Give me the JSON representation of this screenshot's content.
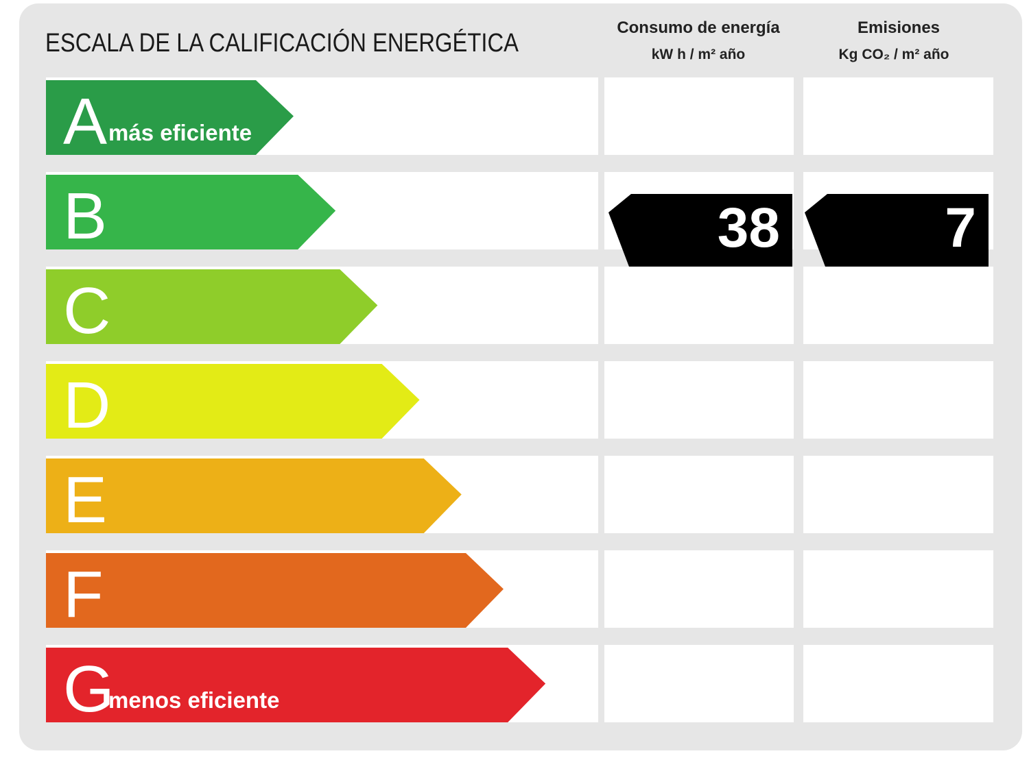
{
  "header": {
    "title": "ESCALA DE LA CALIFICACIÓN ENERGÉTICA",
    "columns": [
      {
        "title": "Consumo de energía",
        "unit": "kW h / m² año"
      },
      {
        "title": "Emisiones",
        "unit": "Kg CO₂ / m² año"
      }
    ]
  },
  "rows": [
    {
      "letter": "A",
      "label": "más eficiente",
      "color": "#2a9c48"
    },
    {
      "letter": "B",
      "color": "#36b54a",
      "consumo": 38,
      "emisiones": 7
    },
    {
      "letter": "C",
      "color": "#8fcd2a"
    },
    {
      "letter": "D",
      "color": "#e3eb16"
    },
    {
      "letter": "E",
      "color": "#edb017"
    },
    {
      "letter": "F",
      "color": "#e2681e"
    },
    {
      "letter": "G",
      "label": "menos eficiente",
      "color": "#e3242b"
    }
  ]
}
